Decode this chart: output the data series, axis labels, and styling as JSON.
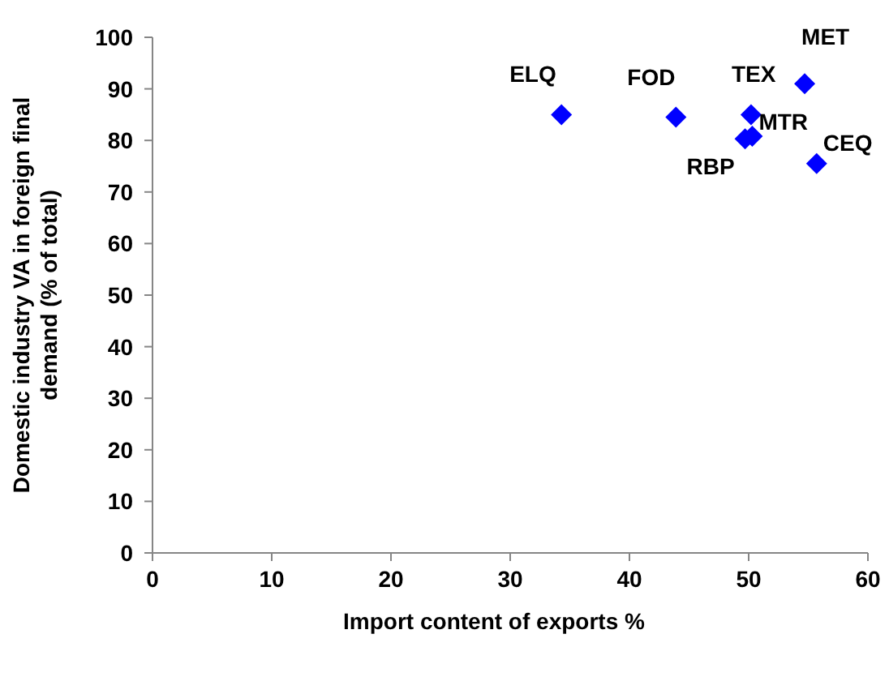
{
  "chart_data": {
    "type": "scatter",
    "xlabel": "Import content of exports %",
    "ylabel": "Domestic industry VA in foreign final demand (% of total)",
    "x": [
      34.3,
      43.9,
      50.2,
      54.7,
      50.3,
      49.7,
      55.7
    ],
    "values": [
      85,
      84.5,
      85,
      91,
      80.8,
      80.3,
      75.5
    ],
    "color": "#0000ff",
    "marker": "diamond",
    "grid": false,
    "xlim": [
      0,
      60
    ],
    "xticks": [
      0,
      10,
      20,
      30,
      40,
      50,
      60
    ],
    "ylim": [
      0,
      100
    ],
    "yticks": [
      0,
      10,
      20,
      30,
      40,
      50,
      60,
      70,
      80,
      90,
      100
    ],
    "annotations": [
      {
        "text": "ELQ",
        "x": 34.3,
        "y": 85
      },
      {
        "text": "FOD",
        "x": 43.9,
        "y": 84.5
      },
      {
        "text": "TEX",
        "x": 50.2,
        "y": 85
      },
      {
        "text": "MET",
        "x": 54.7,
        "y": 91
      },
      {
        "text": "MTR",
        "x": 50.3,
        "y": 80.8
      },
      {
        "text": "RBP",
        "x": 49.7,
        "y": 80.3
      },
      {
        "text": "CEQ",
        "x": 55.7,
        "y": 75.5
      }
    ]
  }
}
